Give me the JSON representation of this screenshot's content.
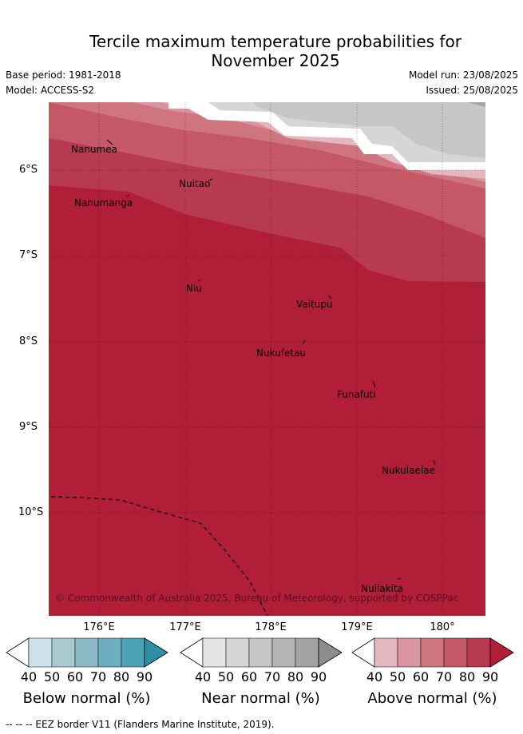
{
  "title_line1": "Tercile maximum temperature probabilities for",
  "title_line2": "November 2025",
  "base_period": "Base period: 1981-2018",
  "model": "Model: ACCESS-S2",
  "model_run": "Model run: 23/08/2025",
  "issued": "Issued: 25/08/2025",
  "lat_labels": [
    "6°S",
    "7°S",
    "8°S",
    "9°S",
    "10°S"
  ],
  "lon_labels": [
    "176°E",
    "177°E",
    "178°E",
    "179°E",
    "180°"
  ],
  "places": [
    "Nanumea",
    "Nuitao",
    "Nanumanga",
    "Niu",
    "Vaitupu",
    "Nukufetau",
    "Funafuti",
    "Nukulaelae",
    "Nuilakita"
  ],
  "copyright": "© Commonwealth of Australia 2025, Bureau of Meteorology, supported by COSPPac",
  "colorbars": [
    {
      "title": "Below normal (%)",
      "ticks": [
        "40",
        "50",
        "60",
        "70",
        "80",
        "90"
      ],
      "colors": [
        "#cde3e9",
        "#a9cad1",
        "#8bbac6",
        "#6eadbd",
        "#4ca3b3",
        "#2e8ea3"
      ]
    },
    {
      "title": "Near normal (%)",
      "ticks": [
        "40",
        "50",
        "60",
        "70",
        "80",
        "90"
      ],
      "colors": [
        "#e5e5e5",
        "#d6d6d6",
        "#c6c6c6",
        "#b5b5b5",
        "#a3a3a3",
        "#8c8c8c"
      ]
    },
    {
      "title": "Above normal (%)",
      "ticks": [
        "40",
        "50",
        "60",
        "70",
        "80",
        "90"
      ],
      "colors": [
        "#e2b7bf",
        "#d9959f",
        "#cf7580",
        "#c45867",
        "#b83a50",
        "#b01e38"
      ]
    }
  ],
  "eez_legend": "-- -- -- EEZ border V11 (Flanders Marine Institute, 2019)."
}
